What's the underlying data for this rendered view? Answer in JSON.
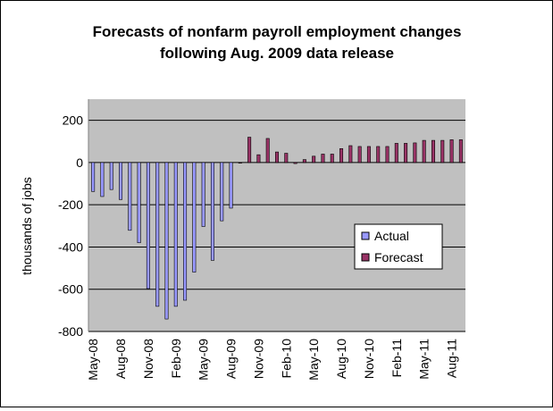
{
  "chart_data": {
    "type": "bar",
    "title": "Forecasts of nonfarm payroll employment changes following Aug. 2009 data release",
    "title_lines": [
      "Forecasts of nonfarm payroll employment changes",
      "following Aug. 2009 data release"
    ],
    "ylabel": "thousands of jobs",
    "xlabel": "",
    "ylim": [
      -800,
      250
    ],
    "yticks": [
      -800,
      -600,
      -400,
      -200,
      0,
      200
    ],
    "grid": true,
    "legend_position": "right",
    "x": [
      "May-08",
      "Jun-08",
      "Jul-08",
      "Aug-08",
      "Sep-08",
      "Oct-08",
      "Nov-08",
      "Dec-08",
      "Jan-09",
      "Feb-09",
      "Mar-09",
      "Apr-09",
      "May-09",
      "Jun-09",
      "Jul-09",
      "Aug-09",
      "Sep-09",
      "Oct-09",
      "Nov-09",
      "Dec-09",
      "Jan-10",
      "Feb-10",
      "Mar-10",
      "Apr-10",
      "May-10",
      "Jun-10",
      "Jul-10",
      "Aug-10",
      "Sep-10",
      "Oct-10",
      "Nov-10",
      "Dec-10",
      "Jan-11",
      "Feb-11",
      "Mar-11",
      "Apr-11",
      "May-11",
      "Jun-11",
      "Jul-11",
      "Aug-11",
      "Sep-11"
    ],
    "xtick_labels": [
      "May-08",
      "Aug-08",
      "Nov-08",
      "Feb-09",
      "May-09",
      "Aug-09",
      "Nov-09",
      "Feb-10",
      "May-10",
      "Aug-10",
      "Nov-10",
      "Feb-11",
      "May-11",
      "Aug-11"
    ],
    "series": [
      {
        "name": "Actual",
        "color": "#9999ff",
        "values": [
          -137,
          -161,
          -128,
          -175,
          -321,
          -380,
          -597,
          -681,
          -741,
          -681,
          -652,
          -519,
          -303,
          -463,
          -276,
          -216,
          null,
          null,
          null,
          null,
          null,
          null,
          null,
          null,
          null,
          null,
          null,
          null,
          null,
          null,
          null,
          null,
          null,
          null,
          null,
          null,
          null,
          null,
          null,
          null,
          null
        ]
      },
      {
        "name": "Forecast",
        "color": "#993366",
        "values": [
          null,
          null,
          null,
          null,
          null,
          null,
          null,
          null,
          null,
          null,
          null,
          null,
          null,
          null,
          null,
          null,
          -3,
          120,
          37,
          114,
          50,
          44,
          -5,
          14,
          30,
          40,
          40,
          66,
          80,
          76,
          76,
          76,
          76,
          91,
          91,
          93,
          105,
          105,
          105,
          108,
          108
        ]
      }
    ]
  },
  "colors": {
    "plot_background": "#c0c0c0",
    "gridline": "#000000"
  }
}
